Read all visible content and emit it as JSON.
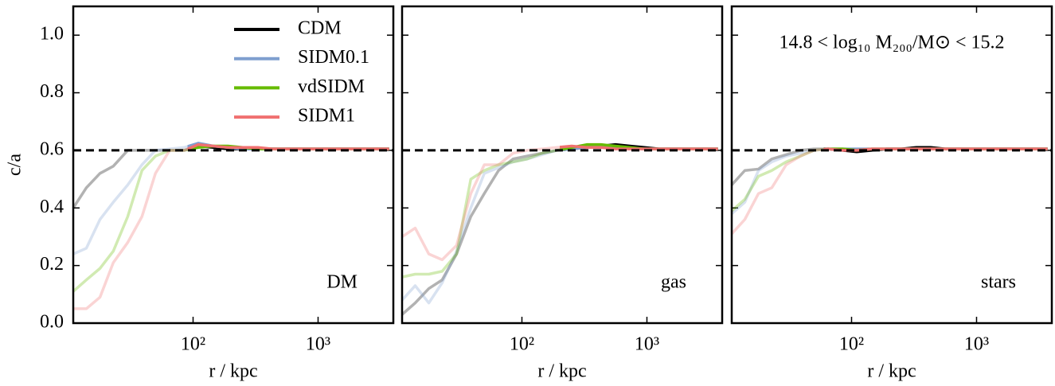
{
  "chart_data": [
    {
      "type": "line",
      "label": "DM",
      "ylabel": "c/a",
      "xlabel": "r / kpc",
      "log_x": true,
      "legend": "upper right",
      "hline": 0.6,
      "fade_below": 90,
      "xlim": [
        11,
        4000
      ],
      "ylim": [
        0,
        1.1
      ],
      "xticks": [
        {
          "value": 100,
          "label": "10²"
        },
        {
          "value": 1000,
          "label": "10³"
        }
      ],
      "yticks": [
        {
          "value": 0,
          "label": "0.0"
        },
        0.2,
        0.4,
        0.6,
        0.8,
        {
          "value": 1,
          "label": "1.0"
        }
      ],
      "x": [
        11,
        14,
        18,
        23,
        30,
        39,
        50,
        65,
        85,
        110,
        145,
        190,
        250,
        330,
        430,
        560,
        730,
        950,
        1250,
        1650,
        2150,
        2800,
        3700
      ],
      "series": [
        {
          "name": "CDM",
          "color": "#000000",
          "values": [
            0.4,
            0.47,
            0.52,
            0.545,
            0.6,
            0.6,
            0.6,
            0.6,
            0.6,
            0.615,
            0.61,
            0.605,
            0.605,
            0.605,
            0.605,
            0.605,
            0.605,
            0.605,
            0.605,
            0.605,
            0.605,
            0.605,
            0.605
          ]
        },
        {
          "name": "SIDM0.1",
          "color": "#7f9fcf",
          "values": [
            0.24,
            0.26,
            0.36,
            0.42,
            0.48,
            0.55,
            0.6,
            0.605,
            0.61,
            0.625,
            0.615,
            0.61,
            0.605,
            0.605,
            0.605,
            0.605,
            0.605,
            0.605,
            0.605,
            0.605,
            0.605,
            0.605,
            0.605
          ]
        },
        {
          "name": "vdSIDM",
          "color": "#66bb00",
          "values": [
            0.11,
            0.15,
            0.19,
            0.25,
            0.37,
            0.53,
            0.58,
            0.6,
            0.6,
            0.61,
            0.615,
            0.615,
            0.61,
            0.605,
            0.605,
            0.605,
            0.605,
            0.605,
            0.605,
            0.605,
            0.605,
            0.605,
            0.605
          ]
        },
        {
          "name": "SIDM1",
          "color": "#f07070",
          "values": [
            0.05,
            0.05,
            0.09,
            0.21,
            0.28,
            0.37,
            0.52,
            0.6,
            0.6,
            0.62,
            0.615,
            0.61,
            0.61,
            0.61,
            0.605,
            0.605,
            0.605,
            0.605,
            0.605,
            0.605,
            0.605,
            0.605,
            0.605
          ]
        }
      ]
    },
    {
      "type": "line",
      "label": "gas",
      "xlabel": "r / kpc",
      "log_x": true,
      "hline": 0.6,
      "fade_below": 200,
      "xlim": [
        11,
        4000
      ],
      "ylim": [
        0,
        1.1
      ],
      "xticks": [
        {
          "value": 100,
          "label": "10²"
        },
        {
          "value": 1000,
          "label": "10³"
        }
      ],
      "yticks": [
        0,
        0.2,
        0.4,
        0.6,
        0.8,
        1
      ],
      "x": [
        11,
        14,
        18,
        23,
        30,
        39,
        50,
        65,
        85,
        110,
        145,
        190,
        250,
        330,
        430,
        560,
        730,
        950,
        1250,
        1650,
        2150,
        2800,
        3700
      ],
      "series": [
        {
          "color": "#000000",
          "values": [
            0.03,
            0.07,
            0.12,
            0.15,
            0.24,
            0.37,
            0.45,
            0.53,
            0.57,
            0.58,
            0.59,
            0.6,
            0.605,
            0.61,
            0.615,
            0.62,
            0.615,
            0.61,
            0.605,
            0.605,
            0.605,
            0.605,
            0.605
          ]
        },
        {
          "color": "#7f9fcf",
          "values": [
            0.08,
            0.13,
            0.07,
            0.14,
            0.25,
            0.4,
            0.52,
            0.54,
            0.56,
            0.57,
            0.585,
            0.6,
            0.605,
            0.61,
            0.615,
            0.61,
            0.605,
            0.605,
            0.605,
            0.605,
            0.605,
            0.605,
            0.605
          ]
        },
        {
          "color": "#66bb00",
          "values": [
            0.16,
            0.17,
            0.17,
            0.18,
            0.24,
            0.5,
            0.53,
            0.55,
            0.56,
            0.57,
            0.59,
            0.6,
            0.61,
            0.62,
            0.62,
            0.615,
            0.61,
            0.605,
            0.605,
            0.605,
            0.605,
            0.605,
            0.605
          ]
        },
        {
          "color": "#f07070",
          "values": [
            0.3,
            0.33,
            0.24,
            0.22,
            0.27,
            0.45,
            0.55,
            0.55,
            0.59,
            0.6,
            0.605,
            0.61,
            0.615,
            0.61,
            0.61,
            0.605,
            0.605,
            0.605,
            0.605,
            0.605,
            0.605,
            0.605,
            0.605
          ]
        }
      ]
    },
    {
      "type": "line",
      "label": "stars",
      "xlabel": "r / kpc",
      "annotation": "14.8 < log₁₀ M₂₀₀/M⊙ < 15.2",
      "log_x": true,
      "hline": 0.6,
      "fade_below": 60,
      "xlim": [
        11,
        4000
      ],
      "ylim": [
        0,
        1.1
      ],
      "xticks": [
        {
          "value": 100,
          "label": "10²"
        },
        {
          "value": 1000,
          "label": "10³"
        }
      ],
      "yticks": [
        0,
        0.2,
        0.4,
        0.6,
        0.8,
        1
      ],
      "x": [
        11,
        14,
        18,
        23,
        30,
        39,
        50,
        65,
        85,
        110,
        145,
        190,
        250,
        330,
        430,
        560,
        730,
        950,
        1250,
        1650,
        2150,
        2800,
        3700
      ],
      "series": [
        {
          "color": "#000000",
          "values": [
            0.48,
            0.53,
            0.535,
            0.57,
            0.585,
            0.6,
            0.605,
            0.605,
            0.6,
            0.595,
            0.6,
            0.605,
            0.605,
            0.61,
            0.61,
            0.605,
            0.605,
            0.605,
            0.605,
            0.605,
            0.605,
            0.605,
            0.605
          ]
        },
        {
          "color": "#7f9fcf",
          "values": [
            0.38,
            0.42,
            0.53,
            0.56,
            0.58,
            0.59,
            0.6,
            0.605,
            0.605,
            0.605,
            0.605,
            0.605,
            0.605,
            0.605,
            0.605,
            0.605,
            0.605,
            0.605,
            0.605,
            0.605,
            0.605,
            0.605,
            0.605
          ]
        },
        {
          "color": "#66bb00",
          "values": [
            0.39,
            0.43,
            0.51,
            0.53,
            0.56,
            0.58,
            0.6,
            0.605,
            0.605,
            0.6,
            0.605,
            0.605,
            0.605,
            0.605,
            0.605,
            0.605,
            0.605,
            0.605,
            0.605,
            0.605,
            0.605,
            0.605,
            0.605
          ]
        },
        {
          "color": "#f07070",
          "values": [
            0.31,
            0.36,
            0.45,
            0.47,
            0.55,
            0.58,
            0.6,
            0.605,
            0.6,
            0.6,
            0.605,
            0.605,
            0.605,
            0.605,
            0.605,
            0.605,
            0.605,
            0.605,
            0.605,
            0.605,
            0.605,
            0.605,
            0.605
          ]
        }
      ]
    }
  ]
}
